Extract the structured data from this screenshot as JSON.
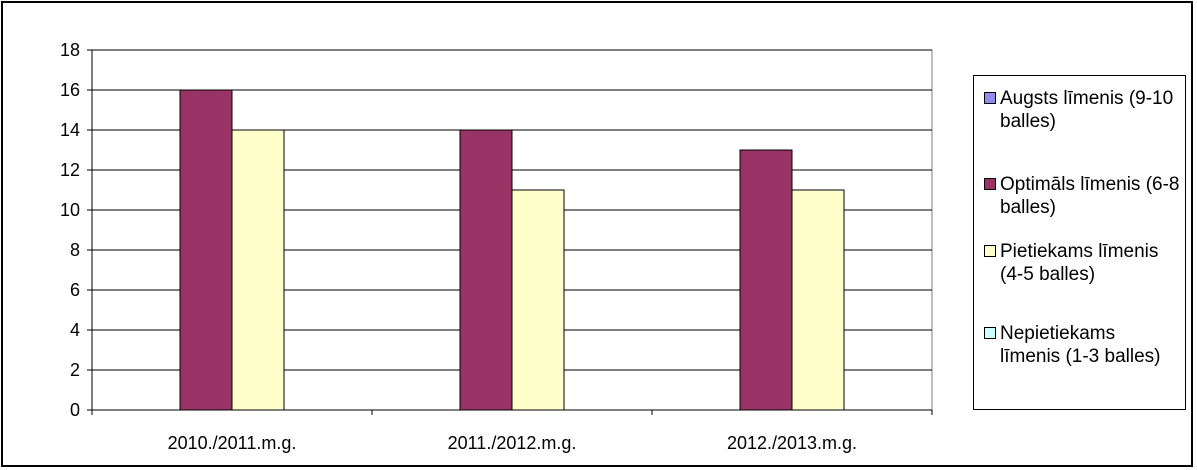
{
  "chart_data": {
    "type": "bar",
    "categories": [
      "2010./2011.m.g.",
      "2011./2012.m.g.",
      "2012./2013.m.g."
    ],
    "series": [
      {
        "name": "Augsts līmenis (9-10 balles)",
        "values": [
          0,
          0,
          0
        ],
        "color": "#8F8FEB"
      },
      {
        "name": "Optimāls līmenis (6-8 balles)",
        "values": [
          16,
          14,
          13
        ],
        "color": "#993366"
      },
      {
        "name": "Pietiekams līmenis (4-5 balles)",
        "values": [
          14,
          11,
          11
        ],
        "color": "#FFFFCC"
      },
      {
        "name": "Nepietiekams līmenis (1-3 balles)",
        "values": [
          0,
          0,
          0
        ],
        "color": "#CCFFFF"
      }
    ],
    "yticks": [
      "0",
      "2",
      "4",
      "6",
      "8",
      "10",
      "12",
      "14",
      "16",
      "18"
    ],
    "ylim": [
      0,
      18
    ],
    "grid": true,
    "legend_position": "right",
    "title": "",
    "xlabel": "",
    "ylabel": ""
  }
}
